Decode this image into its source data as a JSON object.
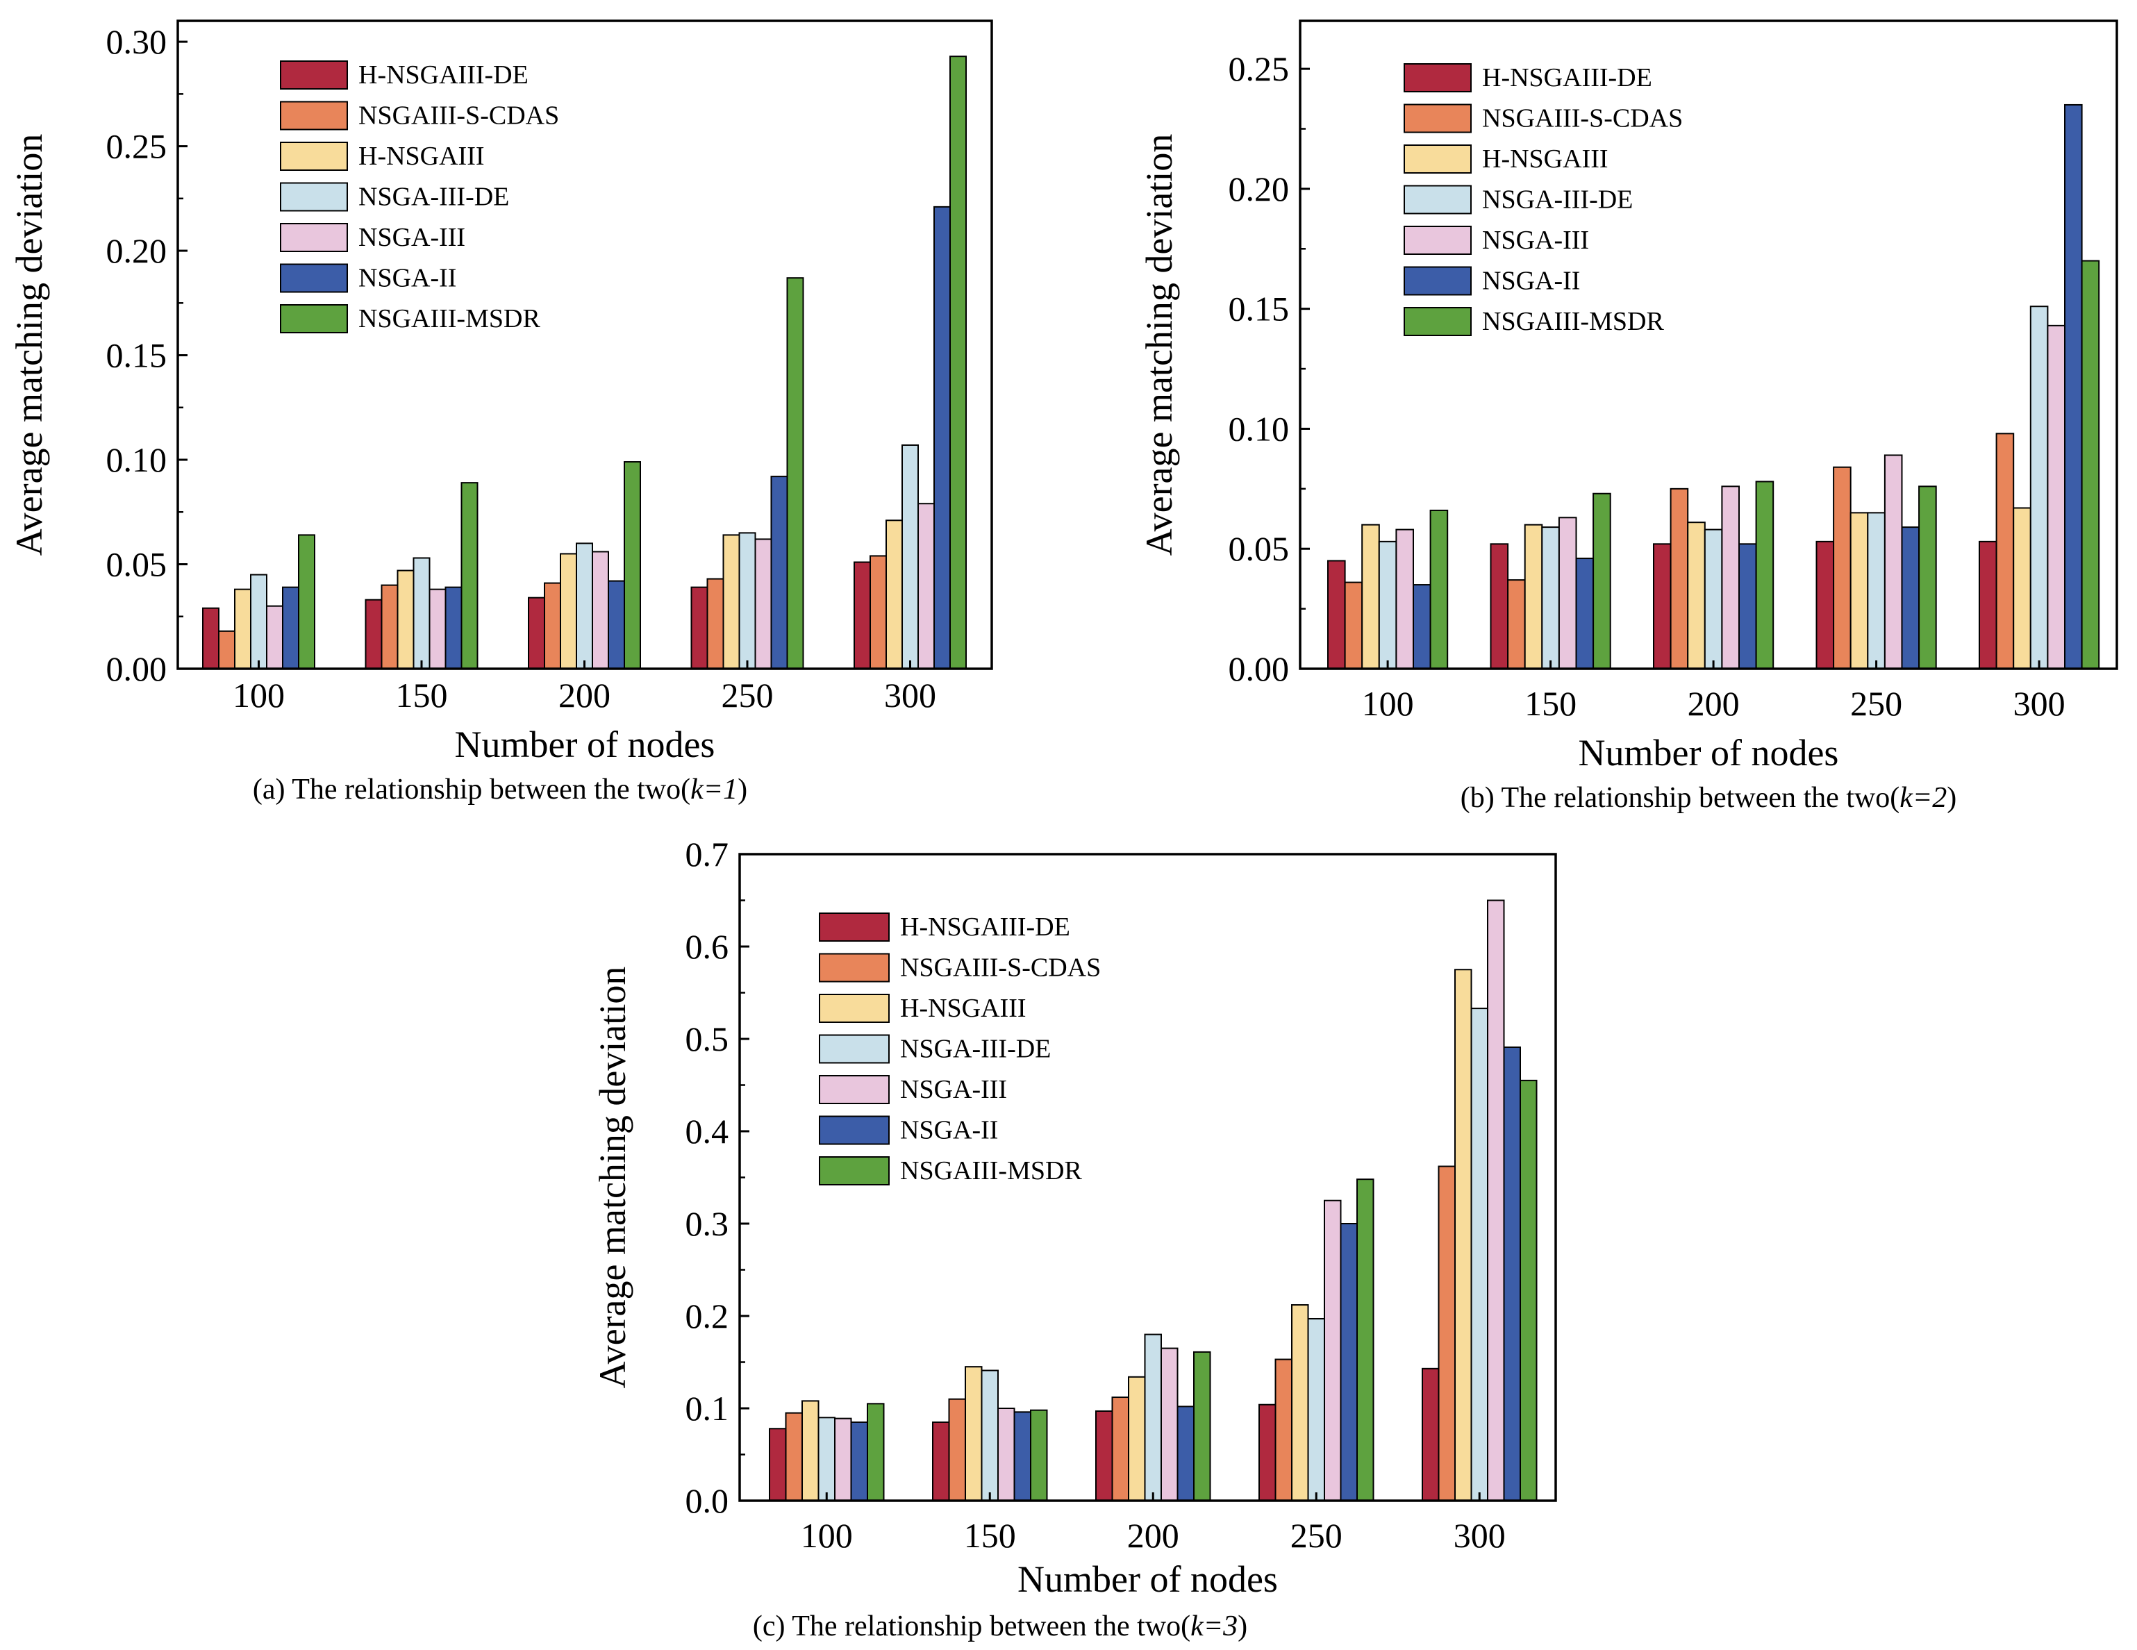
{
  "colors": {
    "H-NSGAIII-DE": "#b0293f",
    "NSGAIII-S-CDAS": "#e8855a",
    "H-NSGAIII": "#f8dc9b",
    "NSGA-III-DE": "#c9e0ea",
    "NSGA-III": "#e9c6dd",
    "NSGA-II": "#3c5da8",
    "NSGAIII-MSDR": "#5ea23f"
  },
  "chart_data": [
    {
      "id": "a",
      "type": "bar",
      "caption": {
        "prefix": "(a) The relationship between the two(",
        "k": "k=1",
        "suffix": ")"
      },
      "xlabel": "Number of nodes",
      "ylabel": "Average matching deviation",
      "categories": [
        "100",
        "150",
        "200",
        "250",
        "300"
      ],
      "ylim": [
        0,
        0.31
      ],
      "yticks": [
        0,
        0.05,
        0.1,
        0.15,
        0.2,
        0.25,
        0.3
      ],
      "ytick_labels": [
        "0.00",
        "0.05",
        "0.10",
        "0.15",
        "0.20",
        "0.25",
        "0.30"
      ],
      "legend": "top-left",
      "series": [
        {
          "name": "H-NSGAIII-DE",
          "values": [
            0.029,
            0.033,
            0.034,
            0.039,
            0.051
          ]
        },
        {
          "name": "NSGAIII-S-CDAS",
          "values": [
            0.018,
            0.04,
            0.041,
            0.043,
            0.054
          ]
        },
        {
          "name": "H-NSGAIII",
          "values": [
            0.038,
            0.047,
            0.055,
            0.064,
            0.071
          ]
        },
        {
          "name": "NSGA-III-DE",
          "values": [
            0.045,
            0.053,
            0.06,
            0.065,
            0.107
          ]
        },
        {
          "name": "NSGA-III",
          "values": [
            0.03,
            0.038,
            0.056,
            0.062,
            0.079
          ]
        },
        {
          "name": "NSGA-II",
          "values": [
            0.039,
            0.039,
            0.042,
            0.092,
            0.221
          ]
        },
        {
          "name": "NSGAIII-MSDR",
          "values": [
            0.064,
            0.089,
            0.099,
            0.187,
            0.293
          ]
        }
      ]
    },
    {
      "id": "b",
      "type": "bar",
      "caption": {
        "prefix": "(b) The relationship between the two(",
        "k": "k=2",
        "suffix": ")"
      },
      "xlabel": "Number of nodes",
      "ylabel": "Average matching deviation",
      "categories": [
        "100",
        "150",
        "200",
        "250",
        "300"
      ],
      "ylim": [
        0,
        0.27
      ],
      "yticks": [
        0,
        0.05,
        0.1,
        0.15,
        0.2,
        0.25
      ],
      "ytick_labels": [
        "0.00",
        "0.05",
        "0.10",
        "0.15",
        "0.20",
        "0.25"
      ],
      "legend": "top-left",
      "series": [
        {
          "name": "H-NSGAIII-DE",
          "values": [
            0.045,
            0.052,
            0.052,
            0.053,
            0.053
          ]
        },
        {
          "name": "NSGAIII-S-CDAS",
          "values": [
            0.036,
            0.037,
            0.075,
            0.084,
            0.098
          ]
        },
        {
          "name": "H-NSGAIII",
          "values": [
            0.06,
            0.06,
            0.061,
            0.065,
            0.067
          ]
        },
        {
          "name": "NSGA-III-DE",
          "values": [
            0.053,
            0.059,
            0.058,
            0.065,
            0.151
          ]
        },
        {
          "name": "NSGA-III",
          "values": [
            0.058,
            0.063,
            0.076,
            0.089,
            0.143
          ]
        },
        {
          "name": "NSGA-II",
          "values": [
            0.035,
            0.046,
            0.052,
            0.059,
            0.235
          ]
        },
        {
          "name": "NSGAIII-MSDR",
          "values": [
            0.066,
            0.073,
            0.078,
            0.076,
            0.17
          ]
        }
      ]
    },
    {
      "id": "c",
      "type": "bar",
      "caption": {
        "prefix": "(c) The relationship between the two(",
        "k": "k=3",
        "suffix": ")"
      },
      "xlabel": "Number of nodes",
      "ylabel": "Average matching deviation",
      "categories": [
        "100",
        "150",
        "200",
        "250",
        "300"
      ],
      "ylim": [
        0,
        0.7
      ],
      "yticks": [
        0,
        0.1,
        0.2,
        0.3,
        0.4,
        0.5,
        0.6,
        0.7
      ],
      "ytick_labels": [
        "0.0",
        "0.1",
        "0.2",
        "0.3",
        "0.4",
        "0.5",
        "0.6",
        "0.7"
      ],
      "legend": "top-left",
      "series": [
        {
          "name": "H-NSGAIII-DE",
          "values": [
            0.078,
            0.085,
            0.097,
            0.104,
            0.143
          ]
        },
        {
          "name": "NSGAIII-S-CDAS",
          "values": [
            0.095,
            0.11,
            0.112,
            0.153,
            0.362
          ]
        },
        {
          "name": "H-NSGAIII",
          "values": [
            0.108,
            0.145,
            0.134,
            0.212,
            0.575
          ]
        },
        {
          "name": "NSGA-III-DE",
          "values": [
            0.09,
            0.141,
            0.18,
            0.197,
            0.533
          ]
        },
        {
          "name": "NSGA-III",
          "values": [
            0.089,
            0.1,
            0.165,
            0.325,
            0.65
          ]
        },
        {
          "name": "NSGA-II",
          "values": [
            0.085,
            0.096,
            0.102,
            0.3,
            0.491
          ]
        },
        {
          "name": "NSGAIII-MSDR",
          "values": [
            0.105,
            0.098,
            0.161,
            0.348,
            0.455
          ]
        }
      ]
    }
  ]
}
